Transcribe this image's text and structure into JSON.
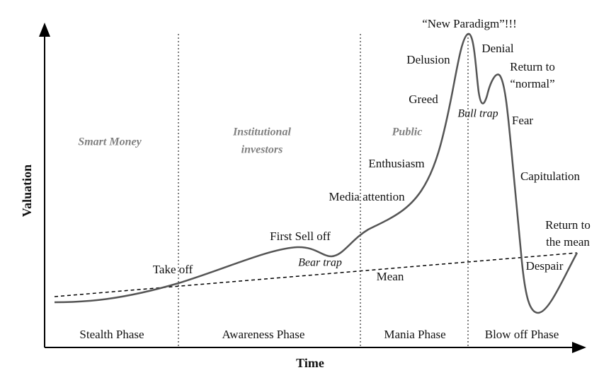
{
  "axes": {
    "y_label": "Valuation",
    "x_label": "Time"
  },
  "phases": [
    "Stealth Phase",
    "Awareness Phase",
    "Mania Phase",
    "Blow off Phase"
  ],
  "groups": [
    "Smart Money",
    "Institutional",
    "investors",
    "Public"
  ],
  "annotations": [
    "“New Paradigm”!!!",
    "Delusion",
    "Denial",
    "Return to",
    "“normal”",
    "Greed",
    "Bull trap",
    "Fear",
    "Enthusiasm",
    "Capitulation",
    "Media attention",
    "First Sell off",
    "Bear trap",
    "Take off",
    "Mean",
    "Despair",
    "Return to",
    "the mean"
  ]
}
